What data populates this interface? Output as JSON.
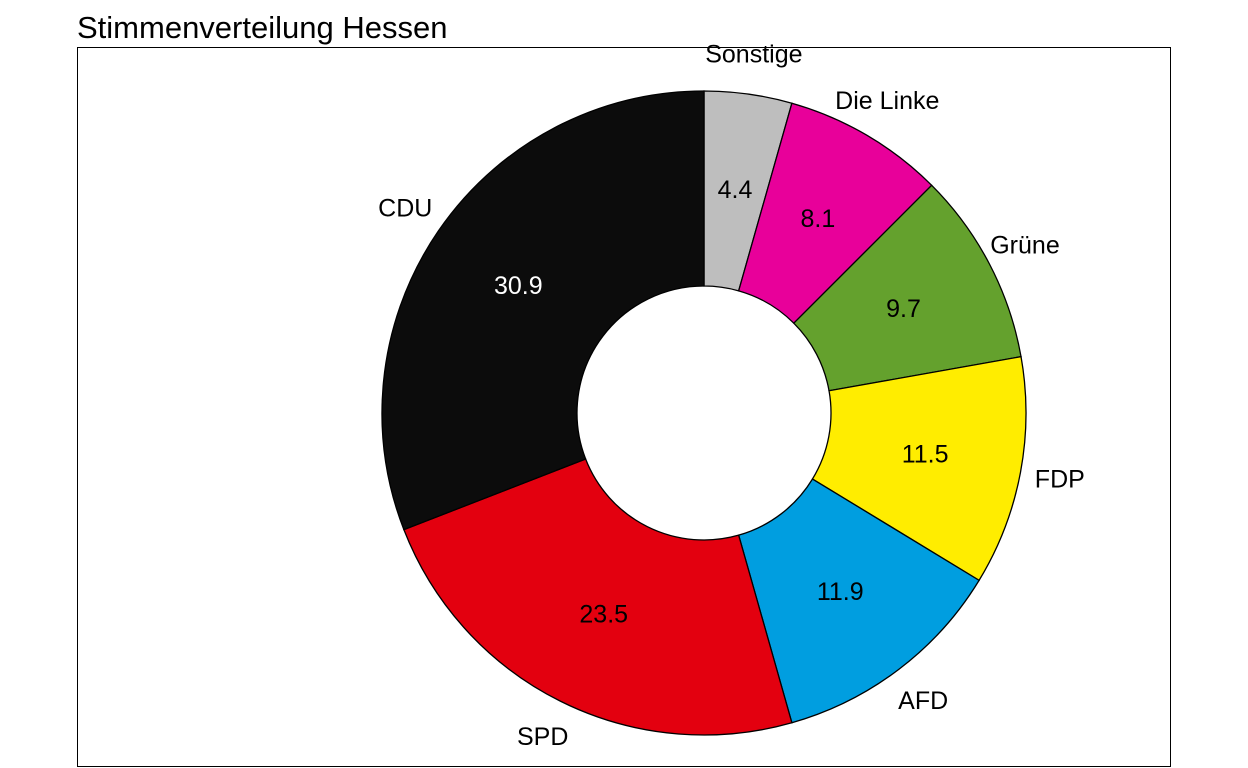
{
  "chart_data": {
    "type": "donut",
    "title": "Stimmenverteilung Hessen",
    "series": [
      {
        "name": "",
        "values": [
          {
            "label": "Sonstige",
            "value": 4.4,
            "color": "#BEBEBE",
            "value_text_color": "#000000"
          },
          {
            "label": "Die Linke",
            "value": 8.1,
            "color": "#E8009A",
            "value_text_color": "#000000"
          },
          {
            "label": "Grüne",
            "value": 9.7,
            "color": "#64A12D",
            "value_text_color": "#000000"
          },
          {
            "label": "FDP",
            "value": 11.5,
            "color": "#FFED00",
            "value_text_color": "#000000"
          },
          {
            "label": "AFD",
            "value": 11.9,
            "color": "#009EE0",
            "value_text_color": "#000000"
          },
          {
            "label": "SPD",
            "value": 23.5,
            "color": "#E3000F",
            "value_text_color": "#000000"
          },
          {
            "label": "CDU",
            "value": 30.9,
            "color": "#0C0C0C",
            "value_text_color": "#FFFFFF"
          }
        ]
      }
    ],
    "direction": "clockwise",
    "start": "top",
    "legend": "none"
  }
}
